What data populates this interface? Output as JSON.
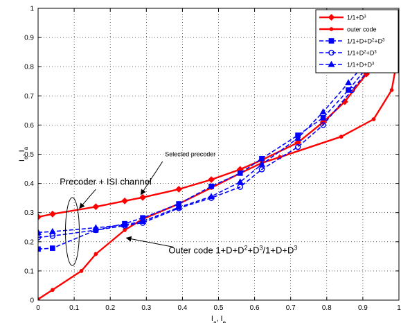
{
  "chart_data": {
    "type": "line",
    "xlabel": "I_a, I_e",
    "ylabel": "I_e, I_a",
    "xlim": [
      0,
      1
    ],
    "ylim": [
      0,
      1
    ],
    "grid": true,
    "legend_position": "top-right",
    "xticks": [
      "0",
      "0.1",
      "0.2",
      "0.3",
      "0.4",
      "0.5",
      "0.6",
      "0.7",
      "0.8",
      "0.9",
      "1"
    ],
    "yticks": [
      "0",
      "0.1",
      "0.2",
      "0.3",
      "0.4",
      "0.5",
      "0.6",
      "0.7",
      "0.8",
      "0.9",
      "1"
    ],
    "series": [
      {
        "name": "1/1+D^3",
        "color": "#ff0000",
        "style": "solid",
        "marker": "diamond",
        "points": [
          [
            0,
            0.285
          ],
          [
            0.04,
            0.295
          ],
          [
            0.16,
            0.32
          ],
          [
            0.24,
            0.34
          ],
          [
            0.29,
            0.352
          ],
          [
            0.39,
            0.38
          ],
          [
            0.48,
            0.413
          ],
          [
            0.56,
            0.448
          ],
          [
            0.62,
            0.48
          ],
          [
            0.72,
            0.54
          ],
          [
            0.79,
            0.61
          ],
          [
            0.85,
            0.68
          ],
          [
            0.91,
            0.775
          ]
        ]
      },
      {
        "name": "outer code",
        "color": "#ff0000",
        "style": "solid",
        "marker": "dot",
        "points": [
          [
            0,
            0.003
          ],
          [
            0.04,
            0.035
          ],
          [
            0.12,
            0.1
          ],
          [
            0.16,
            0.158
          ],
          [
            0.24,
            0.24
          ],
          [
            0.29,
            0.278
          ],
          [
            0.39,
            0.33
          ],
          [
            0.48,
            0.385
          ],
          [
            0.56,
            0.435
          ],
          [
            0.62,
            0.47
          ],
          [
            0.67,
            0.49
          ],
          [
            0.84,
            0.56
          ],
          [
            0.93,
            0.62
          ],
          [
            0.98,
            0.72
          ],
          [
            0.99,
            0.79
          ],
          [
            0.995,
            0.915
          ],
          [
            1.0,
            0.97
          ]
        ]
      },
      {
        "name": "1/1+D+D^2+D^3",
        "color": "#0000ff",
        "style": "dashed",
        "marker": "square",
        "points": [
          [
            0,
            0.175
          ],
          [
            0.04,
            0.178
          ],
          [
            0.16,
            0.24
          ],
          [
            0.24,
            0.262
          ],
          [
            0.29,
            0.282
          ],
          [
            0.39,
            0.33
          ],
          [
            0.48,
            0.39
          ],
          [
            0.56,
            0.435
          ],
          [
            0.62,
            0.485
          ],
          [
            0.72,
            0.565
          ],
          [
            0.79,
            0.625
          ],
          [
            0.86,
            0.72
          ],
          [
            0.94,
            0.84
          ]
        ]
      },
      {
        "name": "1/1+D^2+D^3",
        "color": "#0000ff",
        "style": "dashed",
        "marker": "circle",
        "points": [
          [
            0,
            0.215
          ],
          [
            0.04,
            0.22
          ],
          [
            0.16,
            0.24
          ],
          [
            0.24,
            0.255
          ],
          [
            0.29,
            0.265
          ],
          [
            0.39,
            0.315
          ],
          [
            0.48,
            0.35
          ],
          [
            0.56,
            0.388
          ],
          [
            0.62,
            0.448
          ],
          [
            0.72,
            0.525
          ],
          [
            0.79,
            0.6
          ],
          [
            0.87,
            0.72
          ],
          [
            0.95,
            0.84
          ]
        ]
      },
      {
        "name": "1/1+D+D^3",
        "color": "#0000ff",
        "style": "dashed",
        "marker": "triangle",
        "points": [
          [
            0,
            0.232
          ],
          [
            0.04,
            0.235
          ],
          [
            0.16,
            0.248
          ],
          [
            0.24,
            0.258
          ],
          [
            0.29,
            0.27
          ],
          [
            0.39,
            0.318
          ],
          [
            0.48,
            0.355
          ],
          [
            0.56,
            0.405
          ],
          [
            0.62,
            0.465
          ],
          [
            0.72,
            0.555
          ],
          [
            0.79,
            0.645
          ],
          [
            0.86,
            0.745
          ],
          [
            0.94,
            0.86
          ]
        ]
      }
    ],
    "annotations": [
      {
        "text": "Selected precoder",
        "x": 0.39,
        "y": 0.5
      },
      {
        "text": "Precoder + ISI channel",
        "x": 0.06,
        "y": 0.405
      },
      {
        "text": "Outer code 1+D+D^2+D^3/1+D+D^3",
        "x": 0.4,
        "y": 0.172
      }
    ]
  }
}
